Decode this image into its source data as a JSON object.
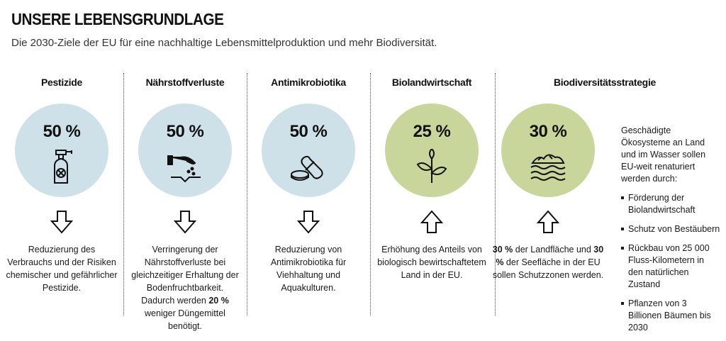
{
  "title": "UNSERE LEBENSGRUNDLAGE",
  "subtitle": "Die 2030-Ziele der EU für eine nachhaltige Lebensmittelproduktion und mehr Biodiversität.",
  "colors": {
    "blue_circle": "#cfe1e8",
    "green_circle": "#c8d69c"
  },
  "columns": [
    {
      "heading": "Pestizide",
      "percent": "50 %",
      "icon": "spray-bottle-icon",
      "arrow": "down",
      "desc": "Reduzierung des Verbrauchs und der Risiken chemischer und gefährlicher Pestizide."
    },
    {
      "heading": "Nährstoffverluste",
      "percent": "50 %",
      "icon": "hand-seeds-icon",
      "arrow": "down",
      "desc_1": "Verringerung der Nährstoffverluste bei gleichzeitiger Erhaltung der Bodenfruchtbarkeit. Dadurch werden ",
      "desc_bold": "20 %",
      "desc_2": " weniger Düngemittel benötigt."
    },
    {
      "heading": "Antimikrobiotika",
      "percent": "50 %",
      "icon": "pills-icon",
      "arrow": "down",
      "desc": "Reduzierung von Antimikrobiotika für Viehhaltung und Aquakulturen."
    },
    {
      "heading": "Biolandwirtschaft",
      "percent": "25 %",
      "icon": "plant-icon",
      "arrow": "up",
      "desc": "Erhöhung des Anteils von biologisch bewirtschaftetem Land in der EU."
    },
    {
      "heading": "Biodiversitätsstrategie",
      "percent": "30 %",
      "icon": "land-water-icon",
      "arrow": "up",
      "desc_bold_1": "30 %",
      "desc_1": " der Landfläche und ",
      "desc_bold_2": "30 %",
      "desc_2": " der Seefläche in der EU sollen Schutzzonen werden."
    }
  ],
  "side": {
    "intro": "Geschädigte Ökosysteme an Land und im Wasser sollen EU-weit renaturiert werden durch:",
    "items": [
      "Förderung der Biolandwirtschaft",
      "Schutz von Bestäubern",
      "Rückbau von 25 000 Fluss-Kilometern in den natürlichen Zustand",
      "Pflanzen von 3 Billionen Bäumen bis 2030"
    ]
  }
}
